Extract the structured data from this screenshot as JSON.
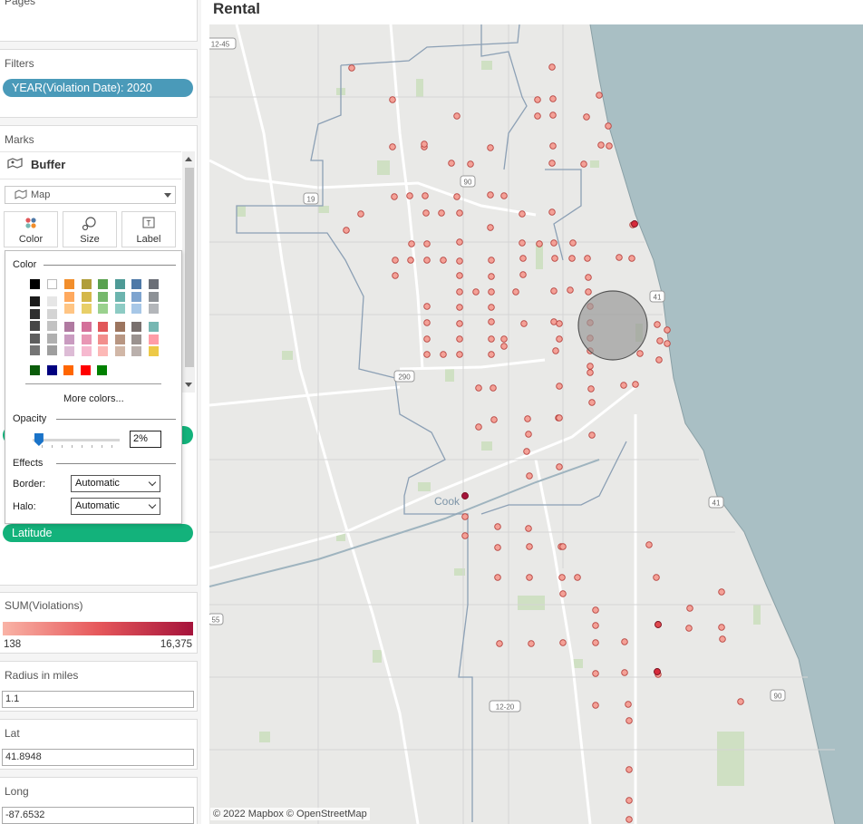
{
  "left_pane": {
    "pages": {
      "title": "Pages"
    },
    "filters": {
      "title": "Filters",
      "pill": "YEAR(Violation Date): 2020"
    },
    "marks": {
      "title": "Marks",
      "layer_name": "Buffer",
      "mark_type": "Map",
      "buttons": {
        "color": "Color",
        "size": "Size",
        "label": "Label"
      },
      "shelf_pill": "Latitude"
    },
    "color_popup": {
      "color_heading": "Color",
      "more_colors": "More colors...",
      "opacity_heading": "Opacity",
      "opacity_value": "2%",
      "opacity_level": 0.02,
      "effects_heading": "Effects",
      "border_label": "Border:",
      "border_value": "Automatic",
      "halo_label": "Halo:",
      "halo_value": "Automatic",
      "palette": {
        "greys_row1": [
          "#000000",
          "#ffffff"
        ],
        "greys_col_dark": [
          "#1a1a1a",
          "#303030",
          "#474747",
          "#5e5e5e",
          "#757575"
        ],
        "greys_col_light": [
          "#e6e6e6",
          "#d4d4d4",
          "#c2c2c2",
          "#b0b0b0",
          "#9e9e9e"
        ],
        "top_block": [
          [
            "#f28e2b",
            "#b09e3a",
            "#59a14f",
            "#4e9a96",
            "#4e79a7",
            "#6b6f77"
          ],
          [
            "#ffa95e",
            "#d4b84a",
            "#76b86c",
            "#6cb4ae",
            "#7ea4cf",
            "#8d9196"
          ],
          [
            "#ffc584",
            "#e8cf68",
            "#9ad18e",
            "#8dcbc4",
            "#a7c7e7",
            "#b3b6ba"
          ]
        ],
        "bottom_block": [
          [
            "#b07aa1",
            "#d4709a",
            "#e15759",
            "#9c755f",
            "#79706e",
            "#76b7b2"
          ],
          [
            "#c99bc0",
            "#e896b4",
            "#f28e8c",
            "#b89682",
            "#9a928f",
            "#ff9da7"
          ],
          [
            "#ddbcd6",
            "#f6b9cf",
            "#fcb8b6",
            "#d1b7a7",
            "#bab0ac",
            "#edc948"
          ]
        ],
        "custom": [
          "#0a5c0a",
          "#00007f",
          "#ff6600",
          "#ff0000",
          "#008000"
        ]
      }
    },
    "legend": {
      "title": "SUM(Violations)",
      "min": "138",
      "max": "16,375",
      "colors": [
        "#f9b3a6",
        "#e6585b",
        "#a5133b"
      ]
    },
    "radius": {
      "title": "Radius in miles",
      "value": "1.1"
    },
    "lat": {
      "title": "Lat",
      "value": "41.8948"
    },
    "long": {
      "title": "Long",
      "value": "-87.6532"
    }
  },
  "main": {
    "title": "Rental",
    "attribution": "© 2022 Mapbox © OpenStreetMap",
    "map_labels": {
      "cook": "Cook",
      "shields": [
        "12-45",
        "19",
        "90",
        "290",
        "41",
        "41",
        "55",
        "12-20",
        "90"
      ]
    },
    "colors": {
      "water": "#a9bfc4",
      "land": "#e9e9e7",
      "park": "#cfe0c3",
      "boundary": "#8ca0b5",
      "point_fill": "#f4a197",
      "point_stroke": "#b8433f",
      "buffer_fill": "#9a9a9a"
    }
  }
}
